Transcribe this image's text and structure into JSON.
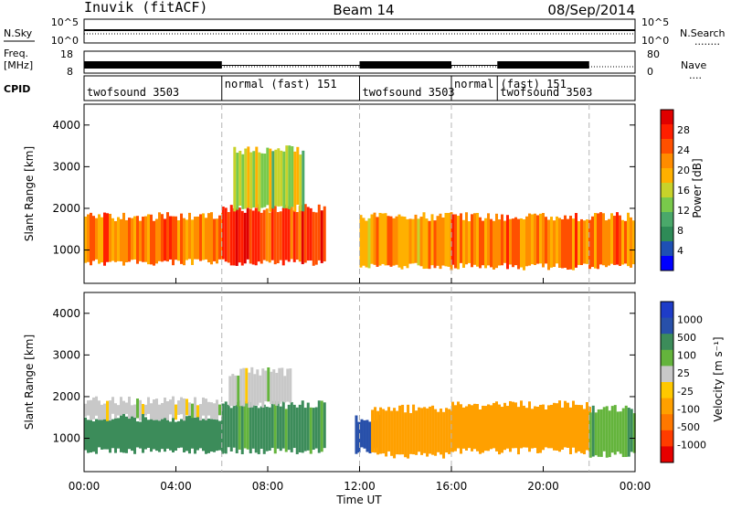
{
  "header": {
    "station": "Inuvik (fitACF)",
    "beam": "Beam 14",
    "date": "08/Sep/2014"
  },
  "panels": {
    "nsky_label": "N.Sky",
    "nsearch_label": "N.Search",
    "nsearch_dots": "........",
    "noise_ticks_left": [
      "10^5",
      "10^0"
    ],
    "noise_ticks_right": [
      "10^5",
      "10^0"
    ],
    "freq_label_1": "Freq.",
    "freq_label_2": "[MHz]",
    "freq_ticks": [
      "18",
      "8"
    ],
    "nave_ticks": [
      "80",
      "0"
    ],
    "nave_label": "Nave",
    "nave_dots": "....",
    "cpid_label": "CPID"
  },
  "cpid_segments": [
    {
      "start_hour": 0.0,
      "end_hour": 6.0,
      "label": "twofsound 3503",
      "row": 1
    },
    {
      "start_hour": 6.0,
      "end_hour": 12.0,
      "label": "normal (fast) 151",
      "row": 0
    },
    {
      "start_hour": 12.0,
      "end_hour": 16.0,
      "label": "twofsound 3503",
      "row": 1
    },
    {
      "start_hour": 16.0,
      "end_hour": 18.0,
      "label": "normal (fast) 151",
      "row": 0
    },
    {
      "start_hour": 18.0,
      "end_hour": 22.0,
      "label": "twofsound 3503",
      "row": 1
    }
  ],
  "axes": {
    "x_ticks": [
      "00:00",
      "04:00",
      "08:00",
      "12:00",
      "16:00",
      "20:00",
      "00:00"
    ],
    "x_label": "Time UT",
    "x_range_hours": [
      0,
      24
    ],
    "y_label": "Slant Range [km]",
    "y_ticks": [
      "1000",
      "2000",
      "3000",
      "4000"
    ],
    "y_range_km": [
      200,
      4500
    ]
  },
  "colorbars": {
    "power": {
      "label": "Power [dB]",
      "ticks": [
        "4",
        "8",
        "12",
        "16",
        "20",
        "24",
        "28"
      ],
      "colors": [
        "#0000ff",
        "#1e50b4",
        "#2e8b57",
        "#4aa86a",
        "#79c94b",
        "#c8d22a",
        "#ffb000",
        "#ff8c00",
        "#ff5000",
        "#ff1e00",
        "#e00000"
      ]
    },
    "velocity": {
      "label": "Velocity [m s⁻¹]",
      "ticks": [
        "1000",
        "500",
        "100",
        "25",
        "-25",
        "-100",
        "-500",
        "-1000"
      ],
      "colors": [
        "#1e3cc8",
        "#2850aa",
        "#3c8c5a",
        "#64b43c",
        "#c8c8c8",
        "#ffc800",
        "#ffa000",
        "#ff7800",
        "#ff3c00",
        "#e60000"
      ]
    }
  },
  "chart_data": [
    {
      "type": "heatmap",
      "title": "Power",
      "xlabel": "Time UT",
      "ylabel": "Slant Range [km]",
      "x_range_hours": [
        0,
        24
      ],
      "ylim": [
        200,
        4500
      ],
      "colorbar_ticks_db": [
        4,
        8,
        12,
        16,
        20,
        24,
        28
      ],
      "echo_regions": [
        {
          "t_start": 0.0,
          "t_end": 6.0,
          "range_min_km": 700,
          "range_max_km": 1800,
          "power_db": 22
        },
        {
          "t_start": 6.0,
          "t_end": 10.5,
          "range_min_km": 700,
          "range_max_km": 2000,
          "power_db": 26
        },
        {
          "t_start": 6.5,
          "t_end": 9.5,
          "range_min_km": 2000,
          "range_max_km": 3400,
          "power_db": 14
        },
        {
          "t_start": 12.0,
          "t_end": 16.0,
          "range_min_km": 600,
          "range_max_km": 1800,
          "power_db": 20
        },
        {
          "t_start": 16.0,
          "t_end": 24.0,
          "range_min_km": 600,
          "range_max_km": 1800,
          "power_db": 22
        }
      ]
    },
    {
      "type": "heatmap",
      "title": "Velocity",
      "xlabel": "Time UT",
      "ylabel": "Slant Range [km]",
      "x_range_hours": [
        0,
        24
      ],
      "ylim": [
        200,
        4500
      ],
      "colorbar_ticks_ms": [
        1000,
        500,
        100,
        25,
        -25,
        -100,
        -500,
        -1000
      ],
      "echo_regions": [
        {
          "t_start": 0.0,
          "t_end": 6.0,
          "range_min_km": 700,
          "range_max_km": 1500,
          "velocity_ms": 150
        },
        {
          "t_start": 0.0,
          "t_end": 6.0,
          "range_min_km": 1500,
          "range_max_km": 1900,
          "velocity_ms": 0
        },
        {
          "t_start": 6.0,
          "t_end": 10.5,
          "range_min_km": 700,
          "range_max_km": 1800,
          "velocity_ms": 120
        },
        {
          "t_start": 6.3,
          "t_end": 9.0,
          "range_min_km": 1800,
          "range_max_km": 2600,
          "velocity_ms": 0
        },
        {
          "t_start": 11.8,
          "t_end": 12.8,
          "range_min_km": 700,
          "range_max_km": 1500,
          "velocity_ms": 600
        },
        {
          "t_start": 12.5,
          "t_end": 16.0,
          "range_min_km": 600,
          "range_max_km": 1700,
          "velocity_ms": -300
        },
        {
          "t_start": 16.0,
          "t_end": 22.0,
          "range_min_km": 700,
          "range_max_km": 1800,
          "velocity_ms": -400
        },
        {
          "t_start": 22.0,
          "t_end": 24.0,
          "range_min_km": 600,
          "range_max_km": 1700,
          "velocity_ms": 80
        }
      ]
    }
  ]
}
